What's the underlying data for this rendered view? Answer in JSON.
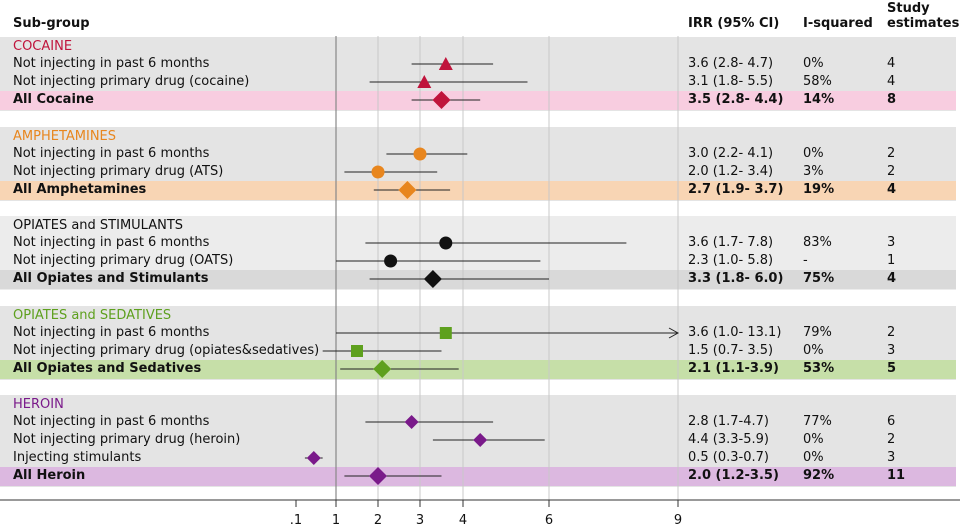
{
  "headers": {
    "subgroup": "Sub-group",
    "irr": "IRR (95% CI)",
    "isq": "I-squared",
    "study": "Study",
    "study2": "estimates"
  },
  "chart_data": {
    "type": "forest",
    "xlabel": "",
    "x_ticks": [
      {
        "label": ".1",
        "value": 0.1
      },
      {
        "label": "1",
        "value": 1
      },
      {
        "label": "2",
        "value": 2
      },
      {
        "label": "3",
        "value": 3
      },
      {
        "label": "4",
        "value": 4
      },
      {
        "label": "6",
        "value": 6
      },
      {
        "label": "9",
        "value": 9
      }
    ],
    "groups": [
      {
        "name": "COCAINE",
        "color": "#c0143c",
        "bg": "#e4e4e4",
        "pooled_bg": "#f8cde0",
        "marker": "triangle",
        "rows": [
          {
            "label": "Not injecting in past 6 months",
            "est": 3.6,
            "lo": 2.8,
            "hi": 4.7,
            "irr": "3.6 (2.8- 4.7)",
            "isq": "0%",
            "n": "4"
          },
          {
            "label": "Not injecting primary drug (cocaine)",
            "est": 3.1,
            "lo": 1.8,
            "hi": 5.5,
            "irr": "3.1 (1.8- 5.5)",
            "isq": "58%",
            "n": "4"
          }
        ],
        "pooled": {
          "label": "All Cocaine",
          "est": 3.5,
          "lo": 2.8,
          "hi": 4.4,
          "irr": "3.5 (2.8- 4.4)",
          "isq": "14%",
          "n": "8"
        }
      },
      {
        "name": "AMPHETAMINES",
        "color": "#e8861e",
        "bg": "#e4e4e4",
        "pooled_bg": "#f8d5b4",
        "marker": "circle",
        "rows": [
          {
            "label": "Not injecting in past 6 months",
            "est": 3.0,
            "lo": 2.2,
            "hi": 4.1,
            "irr": "3.0 (2.2- 4.1)",
            "isq": "0%",
            "n": "2"
          },
          {
            "label": "Not injecting primary drug (ATS)",
            "est": 2.0,
            "lo": 1.2,
            "hi": 3.4,
            "irr": "2.0 (1.2- 3.4)",
            "isq": "3%",
            "n": "2"
          }
        ],
        "pooled": {
          "label": "All Amphetamines",
          "est": 2.7,
          "lo": 1.9,
          "hi": 3.7,
          "irr": "2.7 (1.9- 3.7)",
          "isq": "19%",
          "n": "4"
        }
      },
      {
        "name": "OPIATES and STIMULANTS",
        "color": "#111111",
        "bg": "#ececec",
        "pooled_bg": "#d9d9d9",
        "marker": "circle",
        "rows": [
          {
            "label": "Not injecting in past 6 months",
            "est": 3.6,
            "lo": 1.7,
            "hi": 7.8,
            "irr": "3.6 (1.7- 7.8)",
            "isq": "83%",
            "n": "3"
          },
          {
            "label": "Not injecting primary drug (OATS)",
            "est": 2.3,
            "lo": 1.0,
            "hi": 5.8,
            "irr": "2.3 (1.0- 5.8)",
            "isq": "-",
            "n": "1"
          }
        ],
        "pooled": {
          "label": "All Opiates and Stimulants",
          "est": 3.3,
          "lo": 1.8,
          "hi": 6.0,
          "irr": "3.3 (1.8- 6.0)",
          "isq": "75%",
          "n": "4"
        }
      },
      {
        "name": "OPIATES and SEDATIVES",
        "color": "#5ea01e",
        "bg": "#e4e4e4",
        "pooled_bg": "#c6dfa8",
        "marker": "square",
        "rows": [
          {
            "label": "Not injecting in past 6 months",
            "est": 3.6,
            "lo": 1.0,
            "hi": 13.1,
            "irr": "3.6 (1.0- 13.1)",
            "isq": "79%",
            "n": "2",
            "arrow": true
          },
          {
            "label": "Not injecting primary drug (opiates&sedatives)",
            "est": 1.5,
            "lo": 0.7,
            "hi": 3.5,
            "irr": "1.5 (0.7- 3.5)",
            "isq": "0%",
            "n": "3"
          }
        ],
        "pooled": {
          "label": "All Opiates and Sedatives",
          "est": 2.1,
          "lo": 1.1,
          "hi": 3.9,
          "irr": "2.1 (1.1-3.9)",
          "isq": "53%",
          "n": "5"
        }
      },
      {
        "name": "HEROIN",
        "color": "#7a1a8a",
        "bg": "#e4e4e4",
        "pooled_bg": "#dcb8e0",
        "marker": "diamond-small",
        "rows": [
          {
            "label": "Not injecting in past 6 months",
            "est": 2.8,
            "lo": 1.7,
            "hi": 4.7,
            "irr": "2.8 (1.7-4.7)",
            "isq": "77%",
            "n": "6"
          },
          {
            "label": "Not injecting primary drug (heroin)",
            "est": 4.4,
            "lo": 3.3,
            "hi": 5.9,
            "irr": "4.4 (3.3-5.9)",
            "isq": "0%",
            "n": "2"
          },
          {
            "label": "Injecting stimulants",
            "est": 0.5,
            "lo": 0.3,
            "hi": 0.7,
            "irr": "0.5 (0.3-0.7)",
            "isq": "0%",
            "n": "3"
          }
        ],
        "pooled": {
          "label": "All Heroin",
          "est": 2.0,
          "lo": 1.2,
          "hi": 3.5,
          "irr": "2.0 (1.2-3.5)",
          "isq": "92%",
          "n": "11"
        }
      }
    ]
  }
}
